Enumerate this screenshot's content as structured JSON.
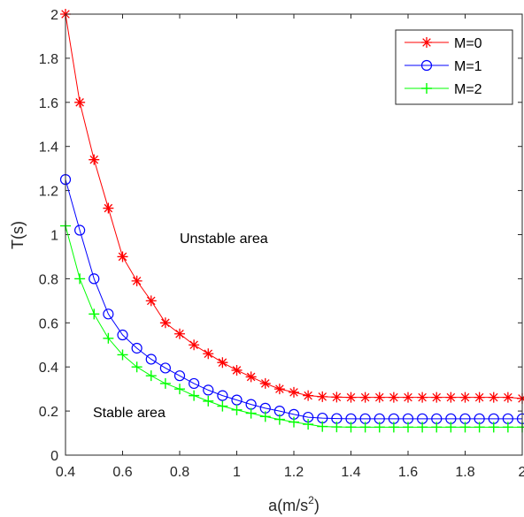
{
  "chart_data": {
    "type": "line",
    "xlabel": "a(m/s",
    "xlabel_sup": "2",
    "xlabel_end": ")",
    "ylabel": "T(s)",
    "xlim": [
      0.4,
      2
    ],
    "ylim": [
      0,
      2
    ],
    "xticks": [
      "0.4",
      "0.6",
      "0.8",
      "1",
      "1.2",
      "1.4",
      "1.6",
      "1.8",
      "2"
    ],
    "yticks": [
      "0",
      "0.2",
      "0.4",
      "0.6",
      "0.8",
      "1",
      "1.2",
      "1.4",
      "1.6",
      "1.8",
      "2"
    ],
    "grid": false,
    "legend_position": "top-right",
    "annotations": [
      {
        "text": "Unstable area",
        "x": 0.95,
        "y": 0.98
      },
      {
        "text": "Stable area",
        "x": 0.72,
        "y": 0.18
      }
    ],
    "x": [
      0.4,
      0.45,
      0.5,
      0.55,
      0.6,
      0.65,
      0.7,
      0.75,
      0.8,
      0.85,
      0.9,
      0.95,
      1.0,
      1.05,
      1.1,
      1.15,
      1.2,
      1.25,
      1.3,
      1.35,
      1.4,
      1.45,
      1.5,
      1.55,
      1.6,
      1.65,
      1.7,
      1.75,
      1.8,
      1.85,
      1.9,
      1.95,
      2.0
    ],
    "series": [
      {
        "name": "M=0",
        "color": "#ff0000",
        "marker": "asterisk",
        "values": [
          2.0,
          1.6,
          1.34,
          1.12,
          0.9,
          0.79,
          0.7,
          0.6,
          0.55,
          0.5,
          0.46,
          0.42,
          0.385,
          0.355,
          0.325,
          0.3,
          0.285,
          0.27,
          0.265,
          0.263,
          0.262,
          0.262,
          0.262,
          0.262,
          0.262,
          0.262,
          0.262,
          0.262,
          0.262,
          0.262,
          0.262,
          0.262,
          0.257
        ]
      },
      {
        "name": "M=1",
        "color": "#0000ff",
        "marker": "circle",
        "values": [
          1.25,
          1.02,
          0.8,
          0.64,
          0.545,
          0.485,
          0.435,
          0.395,
          0.36,
          0.325,
          0.295,
          0.27,
          0.25,
          0.23,
          0.213,
          0.2,
          0.185,
          0.172,
          0.168,
          0.166,
          0.165,
          0.165,
          0.165,
          0.165,
          0.165,
          0.165,
          0.165,
          0.165,
          0.165,
          0.165,
          0.165,
          0.165,
          0.165
        ]
      },
      {
        "name": "M=2",
        "color": "#00ff00",
        "marker": "plus",
        "values": [
          1.04,
          0.8,
          0.64,
          0.53,
          0.455,
          0.4,
          0.36,
          0.325,
          0.3,
          0.27,
          0.245,
          0.222,
          0.205,
          0.19,
          0.175,
          0.162,
          0.15,
          0.14,
          0.13,
          0.128,
          0.127,
          0.127,
          0.127,
          0.127,
          0.127,
          0.127,
          0.127,
          0.127,
          0.127,
          0.127,
          0.127,
          0.127,
          0.127
        ]
      }
    ]
  }
}
